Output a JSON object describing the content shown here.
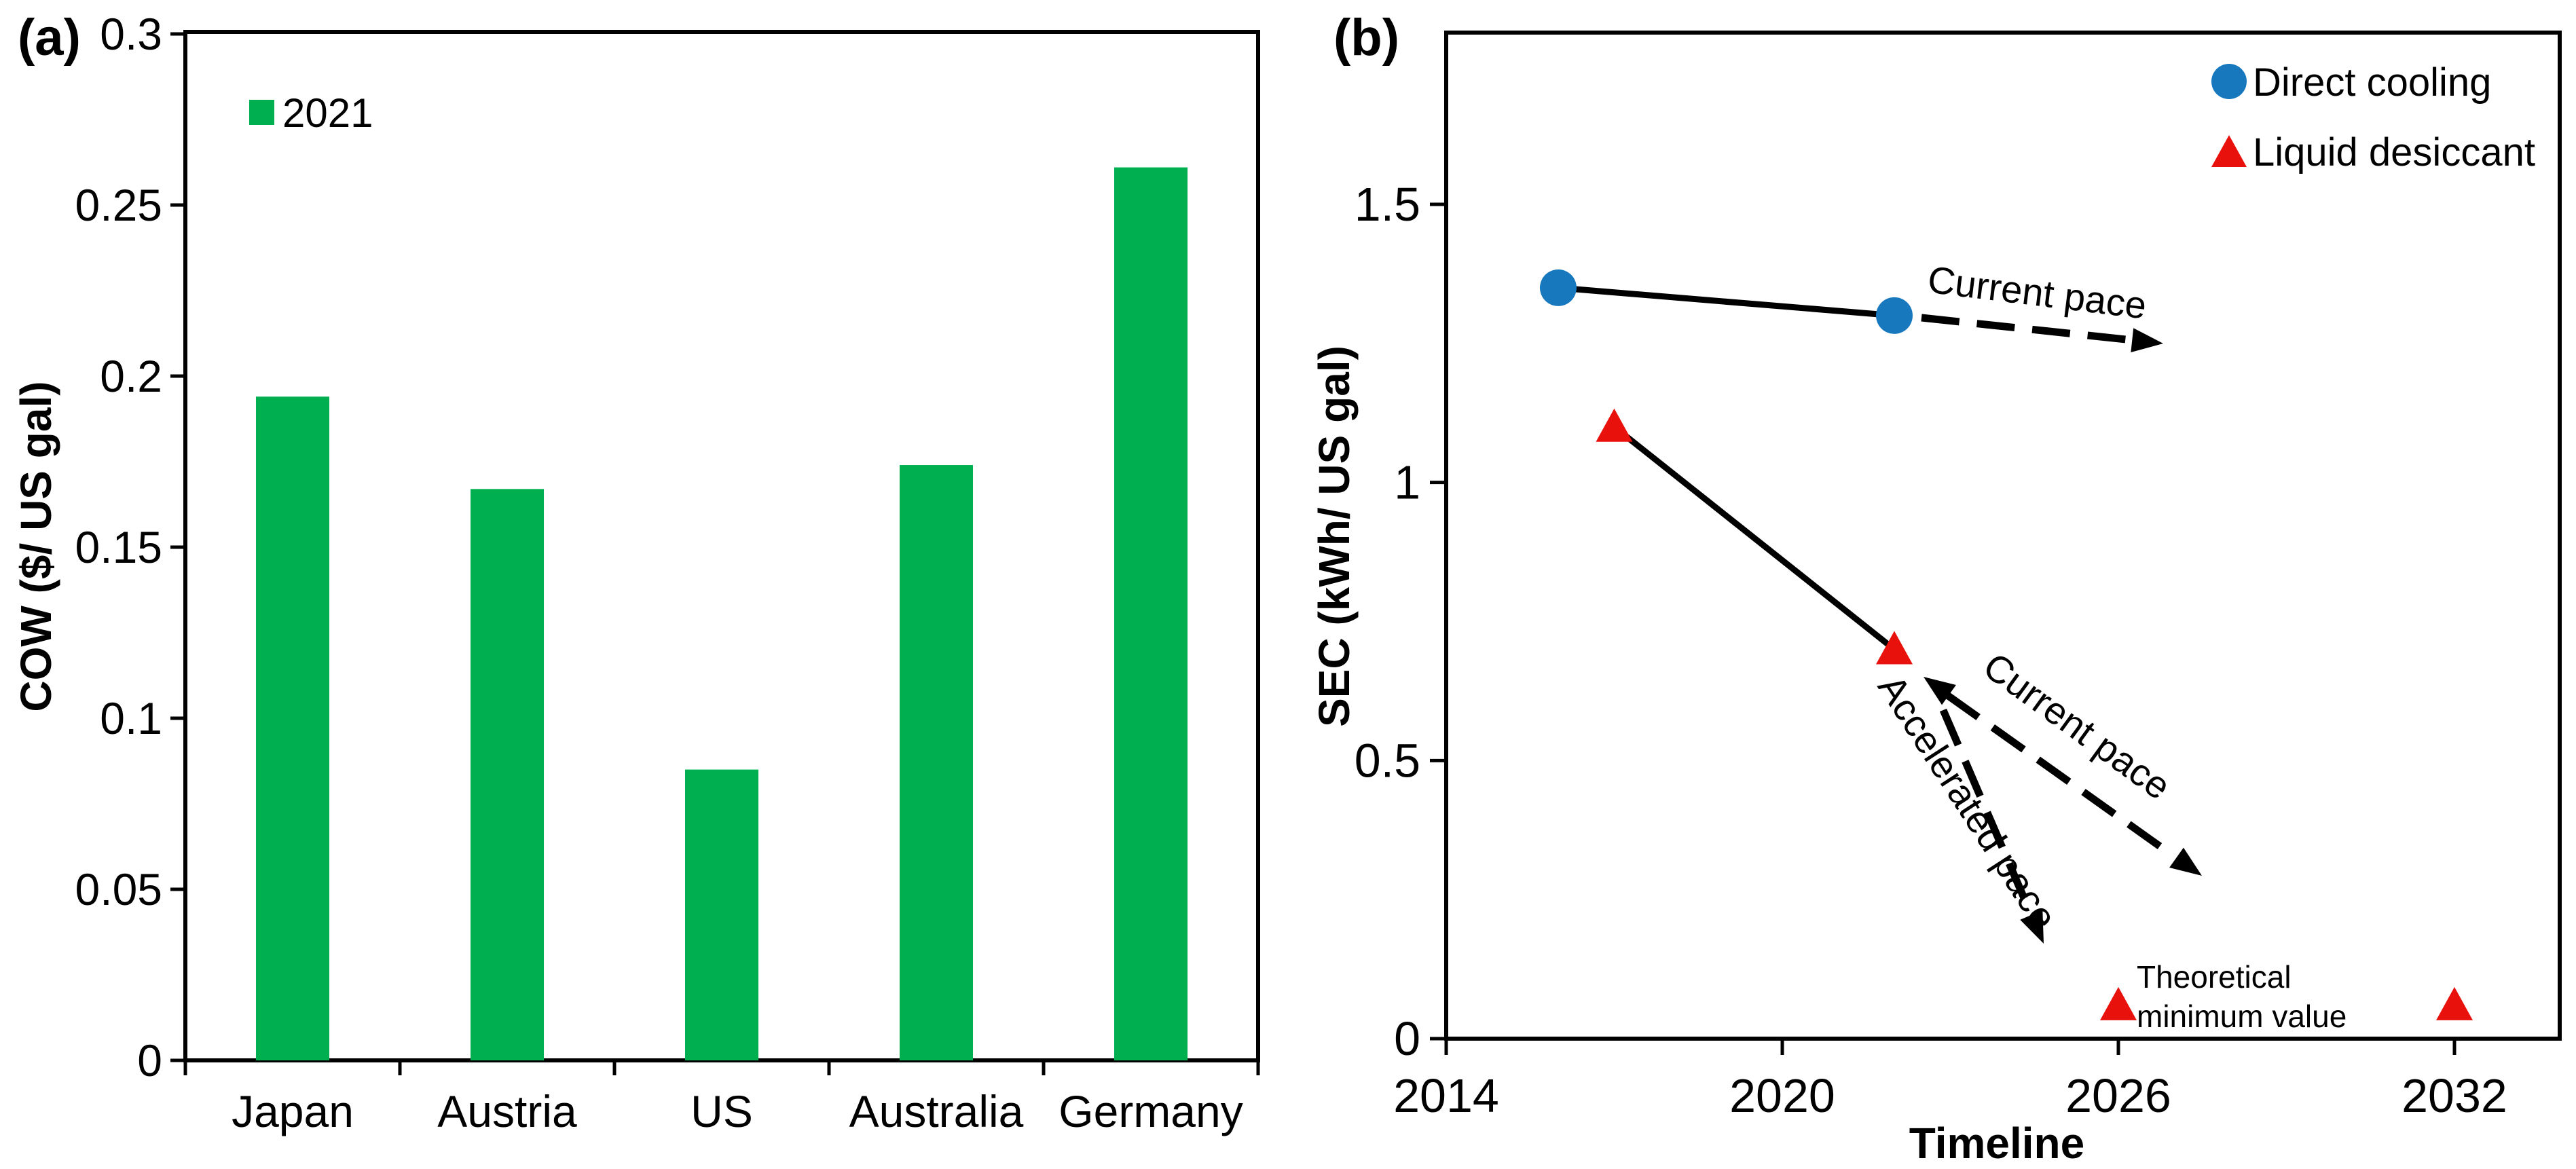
{
  "labels": {
    "a": "(a)",
    "b": "(b)"
  },
  "chart_data": [
    {
      "id": "a",
      "type": "bar",
      "title": "",
      "categories": [
        "Japan",
        "Austria",
        "US",
        "Australia",
        "Germany"
      ],
      "series": [
        {
          "name": "2021",
          "color": "#00B050",
          "values": [
            0.194,
            0.167,
            0.085,
            0.174,
            0.261
          ]
        }
      ],
      "legend_label": "2021",
      "legend_position": "top-left-inside",
      "xlabel": "",
      "ylabel": "COW ($/ US gal)",
      "ylim": [
        0,
        0.3
      ],
      "yticks": [
        0,
        0.05,
        0.1,
        0.15,
        0.2,
        0.25,
        0.3
      ],
      "ytick_labels": [
        "0",
        "0.05",
        "0.1",
        "0.15",
        "0.2",
        "0.25",
        "0.3"
      ],
      "grid": false,
      "frame": true
    },
    {
      "id": "b",
      "type": "scatter",
      "title": "",
      "xlabel": "Timeline",
      "ylabel": "SEC (kWh/ US gal)",
      "xlim": [
        2014,
        2033.9
      ],
      "ylim": [
        0,
        1.81
      ],
      "xticks": [
        2014,
        2020,
        2026,
        2032
      ],
      "xtick_labels": [
        "2014",
        "2020",
        "2026",
        "2032"
      ],
      "yticks": [
        0,
        0.5,
        1,
        1.5
      ],
      "ytick_labels": [
        "0",
        "0.5",
        "1",
        "1.5"
      ],
      "grid": false,
      "frame": true,
      "legend_position": "top-right-inside",
      "series": [
        {
          "name": "Direct cooling",
          "marker": "circle",
          "color": "#1878BE",
          "points": [
            [
              2016,
              1.35
            ],
            [
              2022,
              1.3
            ]
          ],
          "solid_segment": [
            0,
            1
          ]
        },
        {
          "name": "Liquid desiccant",
          "marker": "triangle",
          "color": "#E8110C",
          "points": [
            [
              2017,
              1.1
            ],
            [
              2022,
              0.7
            ],
            [
              2026,
              0.06
            ],
            [
              2032,
              0.06
            ]
          ],
          "solid_segment": [
            0,
            1
          ]
        }
      ],
      "annotations": {
        "blue_pace": "Current pace",
        "red_pace": "Current pace",
        "accel_pace": "Accelerated pace",
        "theo_line1": "Theoretical",
        "theo_line2": "minimum value"
      }
    }
  ]
}
